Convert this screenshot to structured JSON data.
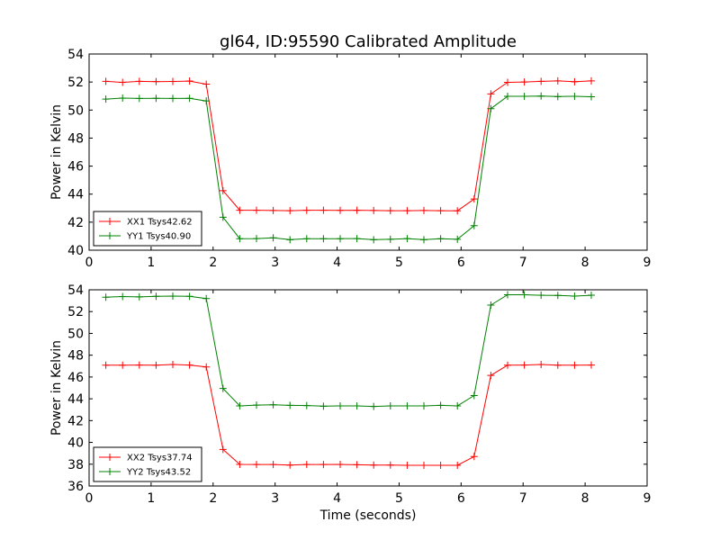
{
  "chart_data": [
    {
      "type": "line",
      "title": "gl64, ID:95590 Calibrated Amplitude",
      "xlabel": "",
      "ylabel": "Power in Kelvin",
      "xlim": [
        0,
        9
      ],
      "ylim": [
        40,
        54
      ],
      "xticks": [
        0,
        1,
        2,
        3,
        4,
        5,
        6,
        7,
        8,
        9
      ],
      "yticks": [
        40,
        42,
        44,
        46,
        48,
        50,
        52,
        54
      ],
      "legend_position": "lower-left",
      "x": [
        0.27,
        0.54,
        0.81,
        1.08,
        1.35,
        1.62,
        1.89,
        2.16,
        2.43,
        2.7,
        2.97,
        3.24,
        3.51,
        3.78,
        4.05,
        4.32,
        4.59,
        4.86,
        5.13,
        5.4,
        5.67,
        5.94,
        6.21,
        6.48,
        6.75,
        7.02,
        7.29,
        7.56,
        7.83,
        8.1
      ],
      "series": [
        {
          "name": "XX1 Tsys42.62",
          "color": "#ff0000",
          "values": [
            52.05,
            51.98,
            52.05,
            52.03,
            52.04,
            52.07,
            51.85,
            44.25,
            42.85,
            42.85,
            42.83,
            42.82,
            42.85,
            42.85,
            42.84,
            42.85,
            42.83,
            42.82,
            42.82,
            42.83,
            42.82,
            42.81,
            43.65,
            51.15,
            51.98,
            52.0,
            52.05,
            52.08,
            52.02,
            52.08
          ]
        },
        {
          "name": "YY1 Tsys40.90",
          "color": "#008000",
          "values": [
            50.78,
            50.85,
            50.83,
            50.84,
            50.83,
            50.84,
            50.65,
            42.35,
            40.82,
            40.83,
            40.88,
            40.75,
            40.82,
            40.82,
            40.82,
            40.83,
            40.75,
            40.78,
            40.83,
            40.75,
            40.82,
            40.78,
            41.75,
            50.1,
            50.98,
            50.98,
            51.0,
            50.96,
            50.98,
            50.95
          ]
        }
      ]
    },
    {
      "type": "line",
      "title": "",
      "xlabel": "Time (seconds)",
      "ylabel": "Power in Kelvin",
      "xlim": [
        0,
        9
      ],
      "ylim": [
        36,
        54
      ],
      "xticks": [
        0,
        1,
        2,
        3,
        4,
        5,
        6,
        7,
        8,
        9
      ],
      "yticks": [
        36,
        38,
        40,
        42,
        44,
        46,
        48,
        50,
        52,
        54
      ],
      "legend_position": "lower-left",
      "x": [
        0.27,
        0.54,
        0.81,
        1.08,
        1.35,
        1.62,
        1.89,
        2.16,
        2.43,
        2.7,
        2.97,
        3.24,
        3.51,
        3.78,
        4.05,
        4.32,
        4.59,
        4.86,
        5.13,
        5.4,
        5.67,
        5.94,
        6.21,
        6.48,
        6.75,
        7.02,
        7.29,
        7.56,
        7.83,
        8.1
      ],
      "series": [
        {
          "name": "XX2 Tsys37.74",
          "color": "#ff0000",
          "values": [
            47.08,
            47.08,
            47.1,
            47.08,
            47.15,
            47.1,
            46.92,
            39.35,
            37.98,
            37.97,
            37.97,
            37.92,
            37.97,
            37.97,
            37.98,
            37.95,
            37.92,
            37.92,
            37.9,
            37.9,
            37.9,
            37.9,
            38.7,
            46.15,
            47.08,
            47.1,
            47.15,
            47.08,
            47.08,
            47.1
          ]
        },
        {
          "name": "YY2 Tsys43.52",
          "color": "#008000",
          "values": [
            53.32,
            53.38,
            53.35,
            53.4,
            53.42,
            53.4,
            53.2,
            44.95,
            43.35,
            43.42,
            43.45,
            43.4,
            43.38,
            43.32,
            43.35,
            43.35,
            43.3,
            43.35,
            43.35,
            43.35,
            43.4,
            43.35,
            44.3,
            52.6,
            53.55,
            53.55,
            53.5,
            53.48,
            53.42,
            53.5
          ]
        }
      ]
    }
  ]
}
